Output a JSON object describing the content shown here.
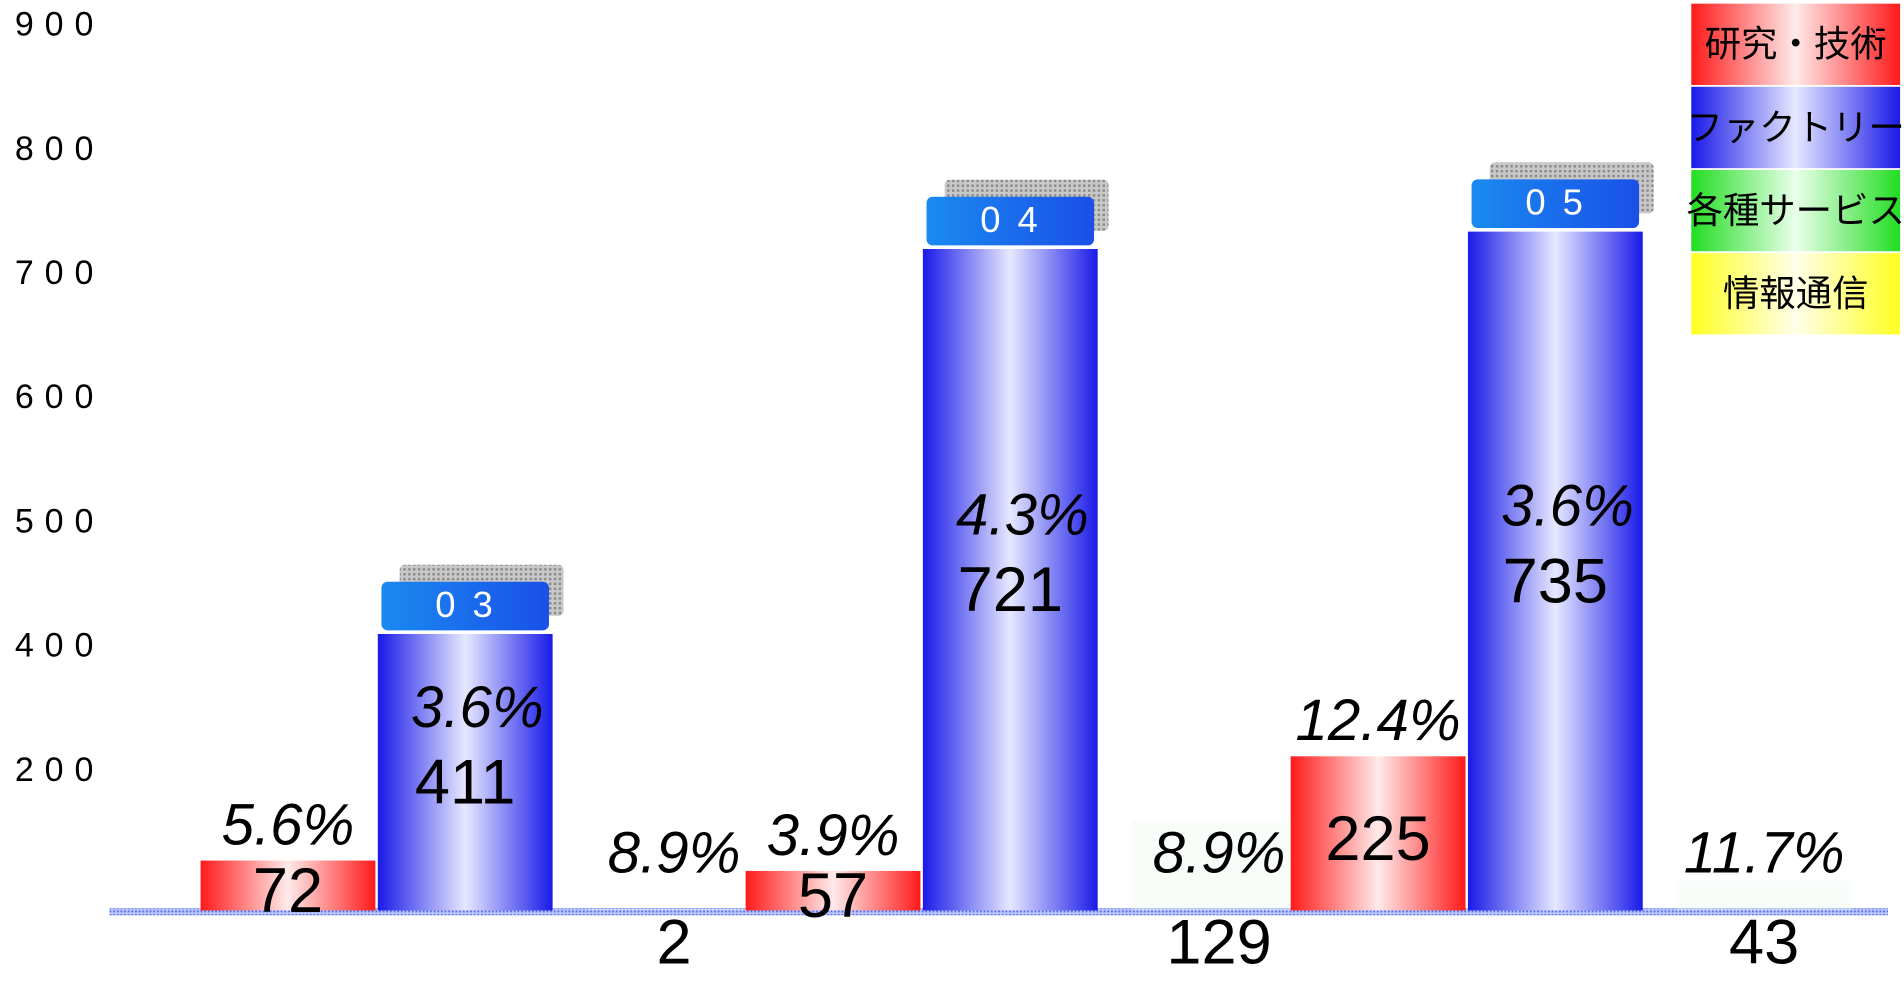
{
  "chart_data": {
    "type": "bar",
    "categories": [
      "03",
      "04",
      "05"
    ],
    "ylim": [
      0,
      900
    ],
    "yticks": [
      900,
      800,
      700,
      600,
      500,
      400,
      200
    ],
    "series": [
      {
        "name": "研究・技術",
        "color": "#ff2a2a",
        "values": [
          72,
          57,
          225
        ],
        "rates": [
          "5.6%",
          "3.9%",
          "12.4%"
        ]
      },
      {
        "name": "ファクトリー",
        "color": "#2626ee",
        "values": [
          411,
          721,
          735
        ],
        "rates": [
          "3.6%",
          "4.3%",
          "3.6%"
        ]
      },
      {
        "name": "各種サービス",
        "color": "#22dd22",
        "values": [
          2,
          129,
          43
        ],
        "rates": [
          "8.9%",
          "8.9%",
          "11.7%"
        ]
      },
      {
        "name": "情報通信",
        "color": "#ffff33",
        "values": [
          null,
          null,
          null
        ]
      }
    ]
  }
}
